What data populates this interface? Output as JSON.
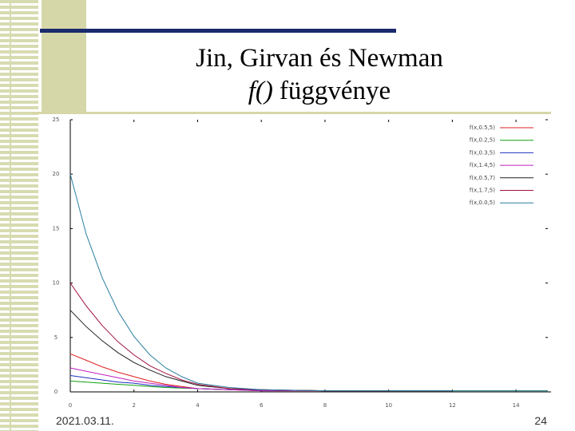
{
  "slide": {
    "title_line1": "Jin, Girvan és Newman",
    "title_function": "f()",
    "title_rest": "függvénye",
    "date": "2021.03.11.",
    "page_number": "24"
  },
  "chart_data": {
    "type": "line",
    "x": [
      0,
      0.5,
      1,
      1.5,
      2,
      2.5,
      3,
      3.5,
      4,
      5,
      6,
      8,
      10,
      12,
      14,
      15
    ],
    "series": [
      {
        "name": "f(x,0.5,5)",
        "color": "#e02020",
        "values": [
          3.5,
          2.9,
          2.3,
          1.8,
          1.4,
          1.0,
          0.7,
          0.5,
          0.3,
          0.2,
          0.1,
          0.1,
          0.1,
          0.1,
          null,
          null
        ]
      },
      {
        "name": "f(x,0.2,5)",
        "color": "#10a010",
        "values": [
          1.0,
          0.9,
          0.8,
          0.7,
          0.6,
          0.5,
          0.4,
          0.35,
          0.3,
          0.2,
          0.15,
          0.1,
          0.1,
          0.1,
          0.1,
          0.1
        ]
      },
      {
        "name": "f(x,0.3,5)",
        "color": "#2030c0",
        "values": [
          1.5,
          1.3,
          1.1,
          0.9,
          0.8,
          0.6,
          0.5,
          0.4,
          0.3,
          0.2,
          0.15,
          0.1,
          0.1,
          null,
          null,
          null
        ]
      },
      {
        "name": "f(x,1.4,5)",
        "color": "#c020c0",
        "values": [
          2.2,
          1.9,
          1.6,
          1.3,
          1.0,
          0.8,
          0.6,
          0.4,
          0.3,
          0.2,
          0.1,
          0.1,
          0.1,
          0.1,
          null,
          null
        ]
      },
      {
        "name": "f(x,0.5,7)",
        "color": "#202020",
        "values": [
          7.5,
          6.0,
          4.7,
          3.6,
          2.7,
          2.0,
          1.4,
          1.0,
          0.6,
          0.3,
          0.2,
          0.1,
          0.1,
          0.1,
          null,
          null
        ]
      },
      {
        "name": "f(x,1.7,5)",
        "color": "#a01040",
        "values": [
          10,
          7.9,
          6.1,
          4.6,
          3.4,
          2.4,
          1.7,
          1.1,
          0.7,
          0.3,
          0.2,
          0.1,
          0.1,
          null,
          null,
          null
        ]
      },
      {
        "name": "f(x,0.0,5)",
        "color": "#2a7fa0",
        "values": [
          20,
          14.5,
          10.5,
          7.4,
          5.1,
          3.4,
          2.2,
          1.4,
          0.8,
          0.4,
          0.2,
          0.1,
          0.1,
          0.1,
          0.1,
          0.1
        ]
      }
    ],
    "xlim": [
      0,
      15
    ],
    "xticks": [
      0,
      2,
      4,
      6,
      8,
      10,
      12,
      14
    ],
    "ylim": [
      0,
      25
    ],
    "yticks": [
      0,
      5,
      10,
      15,
      20,
      25
    ],
    "legend": "upper-right"
  }
}
